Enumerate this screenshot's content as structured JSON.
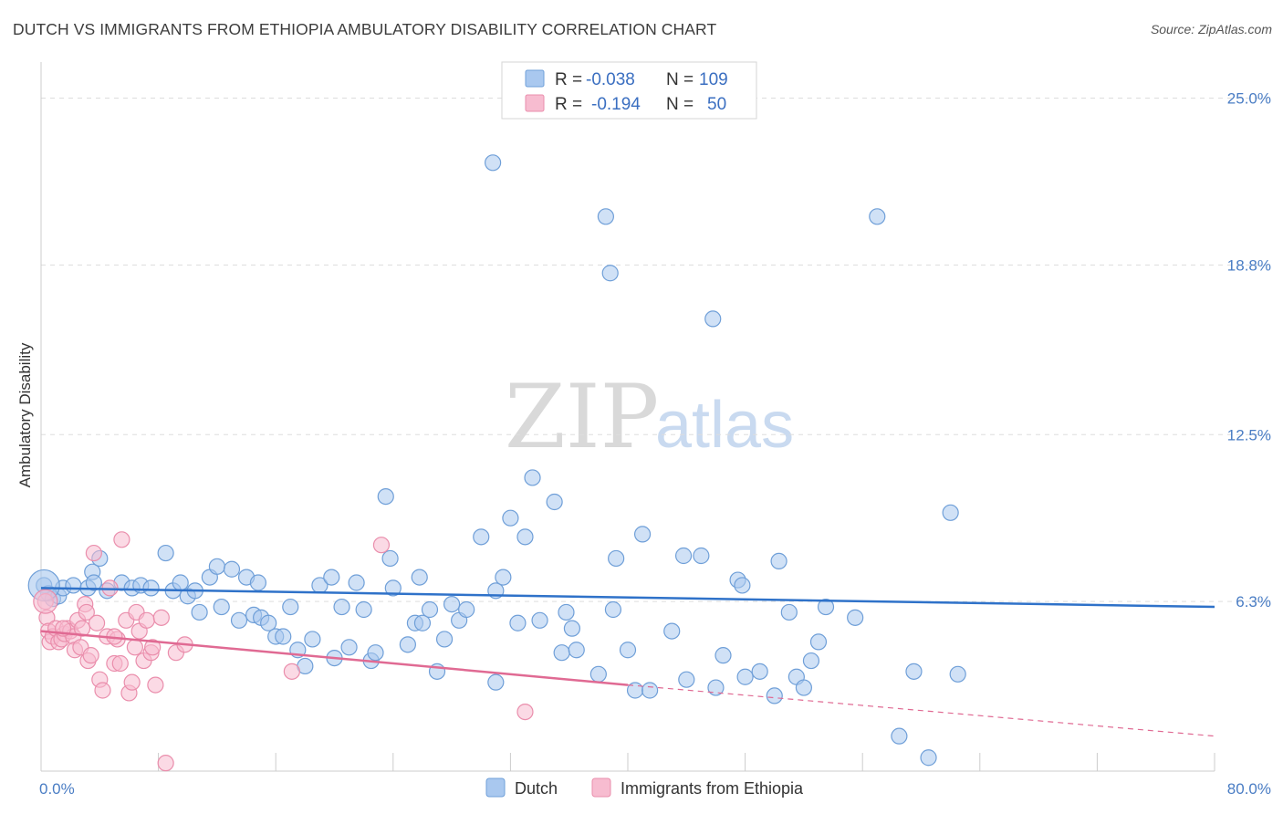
{
  "header": {
    "title": "DUTCH VS IMMIGRANTS FROM ETHIOPIA AMBULATORY DISABILITY CORRELATION CHART",
    "source": "Source: ZipAtlas.com"
  },
  "watermark": {
    "zip": "ZIP",
    "atlas": "atlas"
  },
  "colors": {
    "dutch_fill": "#a9c8ef",
    "dutch_stroke": "#6f9fd8",
    "dutch_line": "#2f72c9",
    "eth_fill": "#f7bcd0",
    "eth_stroke": "#ea8eac",
    "eth_line": "#e06a93",
    "tick_text": "#4a7dc4",
    "grid": "#dddddd"
  },
  "legend": {
    "rows": [
      {
        "r_label": "R =",
        "r_value": "-0.038",
        "n_label": "N =",
        "n_value": "109"
      },
      {
        "r_label": "R =",
        "r_value": "-0.194",
        "n_label": "N =",
        "n_value": "50"
      }
    ]
  },
  "chart_data": {
    "type": "scatter",
    "title": "DUTCH VS IMMIGRANTS FROM ETHIOPIA AMBULATORY DISABILITY CORRELATION CHART",
    "xlabel": "",
    "ylabel": "Ambulatory Disability",
    "xlim": [
      0,
      80
    ],
    "ylim": [
      0,
      26
    ],
    "x_tick_labels": [
      "0.0%",
      "80.0%"
    ],
    "y_ticks": [
      6.3,
      12.5,
      18.8,
      25.0
    ],
    "y_tick_labels": [
      "6.3%",
      "12.5%",
      "18.8%",
      "25.0%"
    ],
    "grid": "horizontal dashed",
    "legend_position": "top-center",
    "series": [
      {
        "name": "Dutch",
        "trend": {
          "x": [
            0,
            80
          ],
          "y": [
            6.8,
            6.1
          ]
        },
        "points": [
          [
            0.2,
            6.9
          ],
          [
            0.5,
            6.6
          ],
          [
            0.8,
            6.4
          ],
          [
            1.2,
            6.5
          ],
          [
            1.5,
            6.8
          ],
          [
            2.2,
            6.9
          ],
          [
            3.2,
            6.8
          ],
          [
            3.5,
            7.4
          ],
          [
            4.0,
            7.9
          ],
          [
            4.5,
            6.7
          ],
          [
            5.5,
            7.0
          ],
          [
            6.2,
            6.8
          ],
          [
            6.8,
            6.9
          ],
          [
            7.5,
            6.8
          ],
          [
            8.5,
            8.1
          ],
          [
            9.0,
            6.7
          ],
          [
            9.5,
            7.0
          ],
          [
            10.0,
            6.5
          ],
          [
            10.5,
            6.7
          ],
          [
            10.8,
            5.9
          ],
          [
            11.5,
            7.2
          ],
          [
            12.0,
            7.6
          ],
          [
            12.3,
            6.1
          ],
          [
            13.0,
            7.5
          ],
          [
            13.5,
            5.6
          ],
          [
            14.0,
            7.2
          ],
          [
            14.5,
            5.8
          ],
          [
            15.0,
            5.7
          ],
          [
            15.5,
            5.5
          ],
          [
            16.0,
            5.0
          ],
          [
            16.5,
            5.0
          ],
          [
            17.0,
            6.1
          ],
          [
            17.5,
            4.5
          ],
          [
            18.0,
            3.9
          ],
          [
            18.5,
            4.9
          ],
          [
            19.0,
            6.9
          ],
          [
            19.8,
            7.2
          ],
          [
            20.0,
            4.2
          ],
          [
            20.5,
            6.1
          ],
          [
            21.0,
            4.6
          ],
          [
            21.5,
            7.0
          ],
          [
            22.0,
            6.0
          ],
          [
            22.5,
            4.1
          ],
          [
            22.8,
            4.4
          ],
          [
            23.5,
            10.2
          ],
          [
            23.8,
            7.9
          ],
          [
            24.0,
            6.8
          ],
          [
            25.0,
            4.7
          ],
          [
            25.5,
            5.5
          ],
          [
            25.8,
            7.2
          ],
          [
            26.0,
            5.5
          ],
          [
            26.5,
            6.0
          ],
          [
            27.0,
            3.7
          ],
          [
            27.5,
            4.9
          ],
          [
            28.0,
            6.2
          ],
          [
            28.5,
            5.6
          ],
          [
            29.0,
            6.0
          ],
          [
            30.0,
            8.7
          ],
          [
            31.0,
            3.3
          ],
          [
            31.0,
            6.7
          ],
          [
            31.5,
            7.2
          ],
          [
            32.0,
            9.4
          ],
          [
            32.5,
            5.5
          ],
          [
            33.0,
            8.7
          ],
          [
            33.5,
            10.9
          ],
          [
            34.0,
            5.6
          ],
          [
            35.0,
            10.0
          ],
          [
            35.5,
            4.4
          ],
          [
            35.8,
            5.9
          ],
          [
            36.2,
            5.3
          ],
          [
            36.5,
            4.5
          ],
          [
            38.0,
            3.6
          ],
          [
            39.0,
            6.0
          ],
          [
            39.2,
            7.9
          ],
          [
            40.0,
            4.5
          ],
          [
            40.5,
            3.0
          ],
          [
            41.0,
            8.8
          ],
          [
            41.5,
            3.0
          ],
          [
            43.0,
            5.2
          ],
          [
            43.8,
            8.0
          ],
          [
            44.0,
            3.4
          ],
          [
            45.0,
            8.0
          ],
          [
            46.0,
            3.1
          ],
          [
            46.5,
            4.3
          ],
          [
            47.5,
            7.1
          ],
          [
            47.8,
            6.9
          ],
          [
            48.0,
            3.5
          ],
          [
            49.0,
            3.7
          ],
          [
            50.0,
            2.8
          ],
          [
            50.3,
            7.8
          ],
          [
            51.0,
            5.9
          ],
          [
            51.5,
            3.5
          ],
          [
            52.0,
            3.1
          ],
          [
            52.5,
            4.1
          ],
          [
            53.0,
            4.8
          ],
          [
            53.5,
            6.1
          ],
          [
            55.5,
            5.7
          ],
          [
            57.0,
            20.6
          ],
          [
            58.5,
            1.3
          ],
          [
            59.5,
            3.7
          ],
          [
            60.5,
            0.5
          ],
          [
            62.0,
            9.6
          ],
          [
            62.5,
            3.6
          ],
          [
            30.8,
            22.6
          ],
          [
            38.5,
            20.6
          ],
          [
            38.8,
            18.5
          ],
          [
            45.8,
            16.8
          ],
          [
            3.6,
            7.0
          ],
          [
            14.8,
            7.0
          ]
        ]
      },
      {
        "name": "Immigrants from Ethiopia",
        "trend": {
          "x": [
            0,
            40
          ],
          "y": [
            5.2,
            3.2
          ]
        },
        "trend_extrapolated": {
          "x": [
            40,
            80
          ],
          "y": [
            3.2,
            1.3
          ]
        },
        "points": [
          [
            0.3,
            6.3
          ],
          [
            0.4,
            5.7
          ],
          [
            0.5,
            5.2
          ],
          [
            0.6,
            4.8
          ],
          [
            0.8,
            5.0
          ],
          [
            1.0,
            5.3
          ],
          [
            1.2,
            4.8
          ],
          [
            1.4,
            4.9
          ],
          [
            1.6,
            5.1
          ],
          [
            1.8,
            5.3
          ],
          [
            2.0,
            5.2
          ],
          [
            2.2,
            5.0
          ],
          [
            2.3,
            4.5
          ],
          [
            2.5,
            5.6
          ],
          [
            2.7,
            4.6
          ],
          [
            2.8,
            5.3
          ],
          [
            3.0,
            6.2
          ],
          [
            3.1,
            5.9
          ],
          [
            3.2,
            4.1
          ],
          [
            3.4,
            4.3
          ],
          [
            3.6,
            8.1
          ],
          [
            3.8,
            5.5
          ],
          [
            4.0,
            3.4
          ],
          [
            4.2,
            3.0
          ],
          [
            4.5,
            5.0
          ],
          [
            4.7,
            6.8
          ],
          [
            5.0,
            4.0
          ],
          [
            5.2,
            4.9
          ],
          [
            5.4,
            4.0
          ],
          [
            5.5,
            8.6
          ],
          [
            5.8,
            5.6
          ],
          [
            6.0,
            2.9
          ],
          [
            6.2,
            3.3
          ],
          [
            6.4,
            4.6
          ],
          [
            6.5,
            5.9
          ],
          [
            6.7,
            5.2
          ],
          [
            7.0,
            4.1
          ],
          [
            7.2,
            5.6
          ],
          [
            7.5,
            4.4
          ],
          [
            7.6,
            4.6
          ],
          [
            7.8,
            3.2
          ],
          [
            8.2,
            5.7
          ],
          [
            8.5,
            0.3
          ],
          [
            9.2,
            4.4
          ],
          [
            9.8,
            4.7
          ],
          [
            17.1,
            3.7
          ],
          [
            23.2,
            8.4
          ],
          [
            33.0,
            2.2
          ],
          [
            5.0,
            5.0
          ],
          [
            1.5,
            5.3
          ]
        ]
      }
    ]
  },
  "bottom_legend": {
    "items": [
      "Dutch",
      "Immigrants from Ethiopia"
    ]
  }
}
